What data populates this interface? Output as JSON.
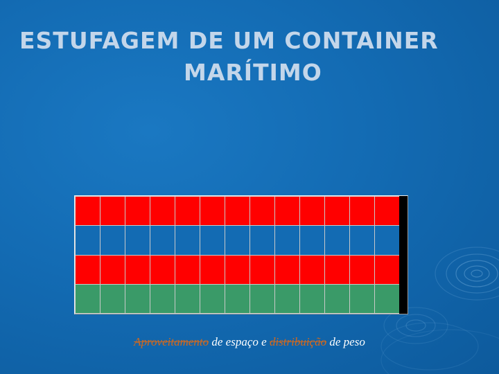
{
  "slide": {
    "title_line_1": "ESTUFAGEM DE UM CONTAINER",
    "title_line_2": "MARÍTIMO",
    "title_color": "#c3d6ea",
    "background_color": "#136bb3"
  },
  "container": {
    "columns": 13,
    "rows": [
      {
        "cargo": "red",
        "color": "#ff0000"
      },
      {
        "cargo": "blue",
        "color": "#136bb3"
      },
      {
        "cargo": "red",
        "color": "#ff0000"
      },
      {
        "cargo": "green",
        "color": "#3a9a68"
      }
    ],
    "door_color": "#000000"
  },
  "caption": {
    "part_1": "Aproveitamento",
    "part_1_color": "#d2691e",
    "part_2": " de espaço e ",
    "part_2_color": "#ffffff",
    "part_3": "distribuição",
    "part_3_color": "#d2691e",
    "part_4": " de peso",
    "part_4_color": "#ffffff"
  },
  "decoration": {
    "ripple_icon": "water-ripple-icon"
  }
}
